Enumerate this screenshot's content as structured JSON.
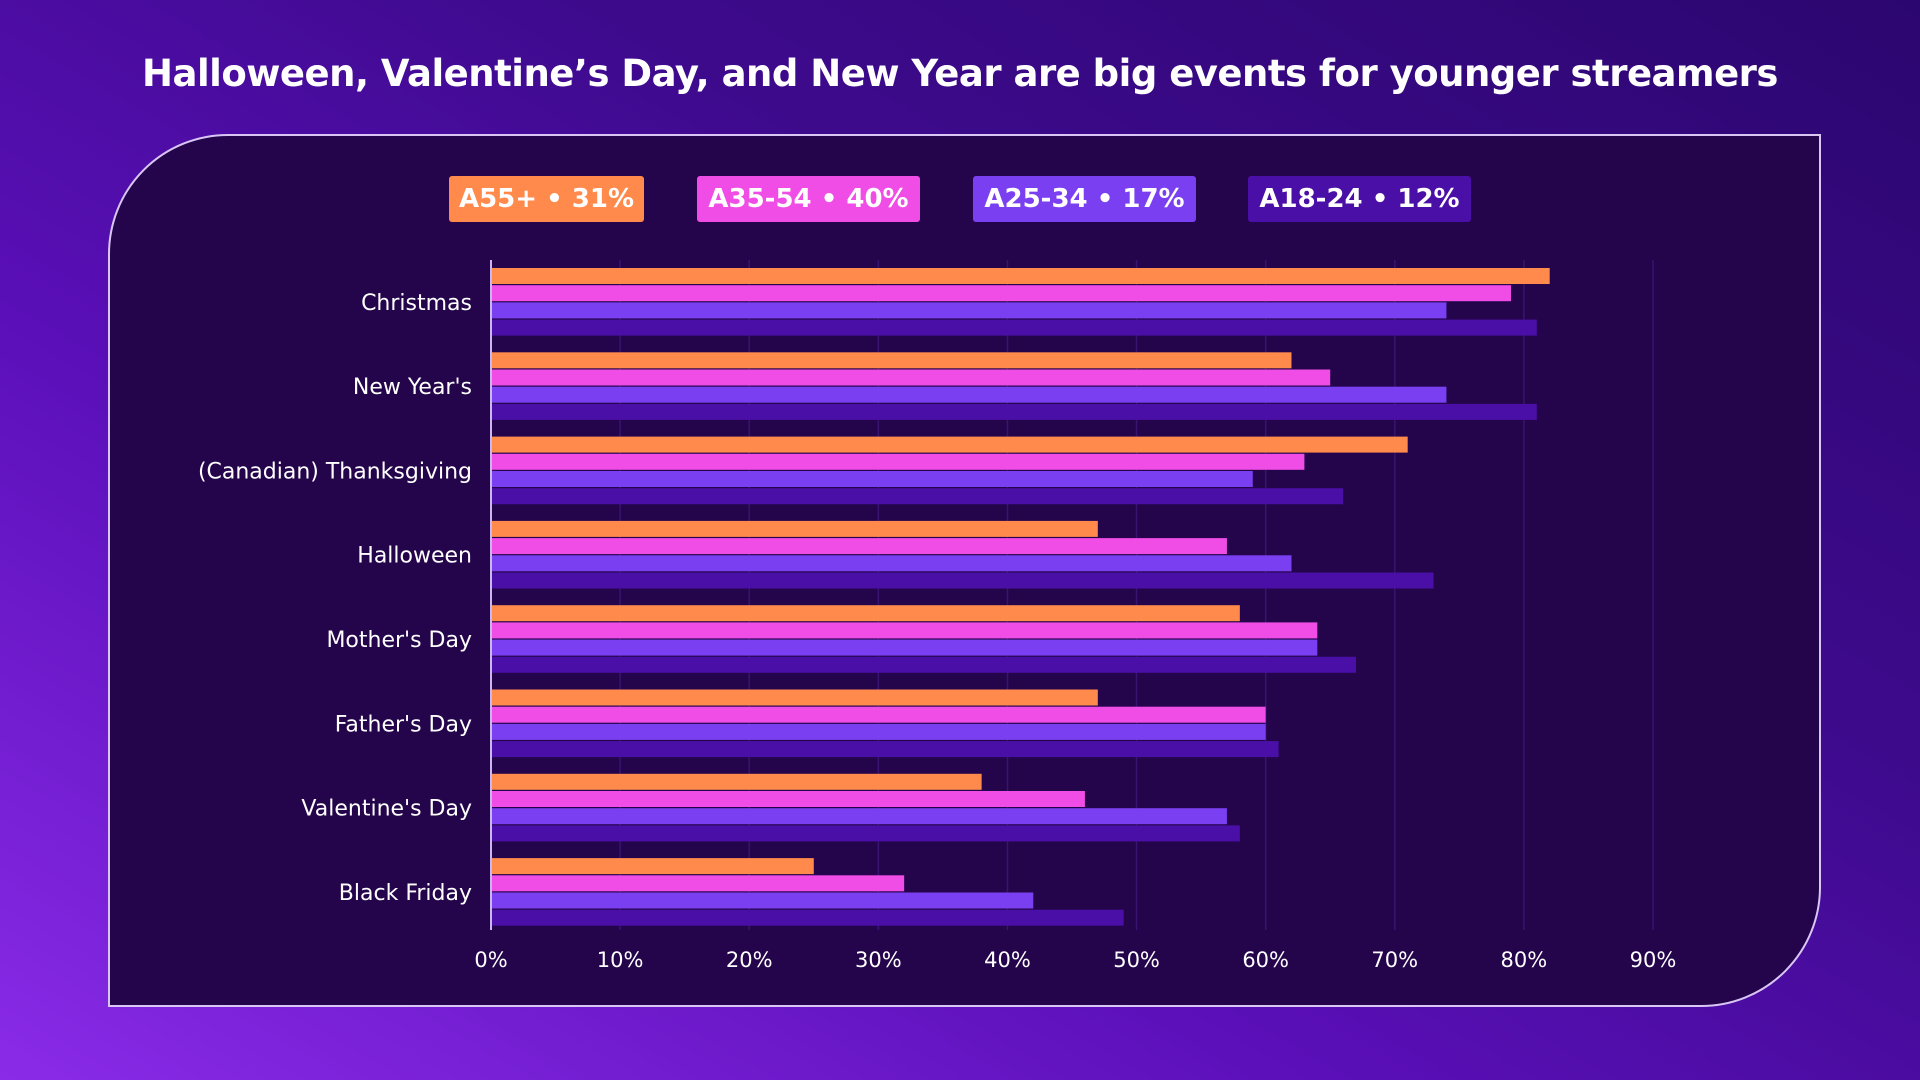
{
  "chart_data": {
    "type": "bar",
    "orientation": "horizontal",
    "title": "Halloween, Valentine’s Day, and New Year are big events for younger streamers",
    "categories": [
      "Christmas",
      "New Year's",
      "(Canadian) Thanksgiving",
      "Halloween",
      "Mother's Day",
      "Father's Day",
      "Valentine's Day",
      "Black Friday"
    ],
    "series": [
      {
        "name": "A55+ • 31%",
        "color": "#ff8a4c",
        "values": [
          82,
          62,
          71,
          47,
          58,
          47,
          38,
          25
        ]
      },
      {
        "name": "A35-54 • 40%",
        "color": "#f04ce6",
        "values": [
          79,
          65,
          63,
          57,
          64,
          60,
          46,
          32
        ]
      },
      {
        "name": "A25-34 • 17%",
        "color": "#7b3ff2",
        "values": [
          74,
          74,
          59,
          62,
          64,
          60,
          57,
          42
        ]
      },
      {
        "name": "A18-24 • 12%",
        "color": "#4a0fa6",
        "values": [
          81,
          81,
          66,
          73,
          67,
          61,
          58,
          49
        ]
      }
    ],
    "x_ticks": [
      "0%",
      "10%",
      "20%",
      "30%",
      "40%",
      "50%",
      "60%",
      "70%",
      "80%",
      "90%"
    ],
    "xlim": [
      0,
      90
    ],
    "grid": true,
    "legend_position": "top"
  }
}
